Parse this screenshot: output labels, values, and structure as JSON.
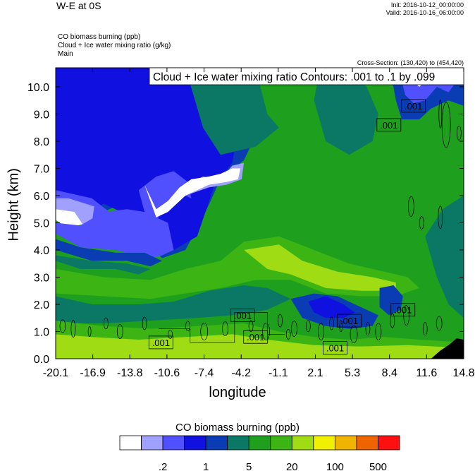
{
  "header": {
    "title": "W-E at 0S",
    "init": "Init: 2016-10-12_00:00:00",
    "valid": "Valid: 2016-10-16_06:00:00",
    "field1": "CO biomass burning   (ppb)",
    "field2": "Cloud + Ice water mixing ratio   (g/kg)",
    "field3": "Main",
    "cross_section": "Cross-Section: (130,420) to (454,420)"
  },
  "chart_data": {
    "type": "heatmap",
    "contour_label": "Cloud + Ice water mixing ratio Contours: .001 to .1 by .099",
    "xlabel": "longitude",
    "ylabel": "Height (km)",
    "xlim": [
      -20.1,
      14.8
    ],
    "ylim": [
      0,
      10.7
    ],
    "x_ticks": [
      "-20.1",
      "-16.9",
      "-13.8",
      "-10.6",
      "-7.4",
      "-4.2",
      "-1.1",
      "2.1",
      "5.3",
      "8.4",
      "11.6",
      "14.8"
    ],
    "y_ticks": [
      "0.0",
      "1.0",
      "2.0",
      "3.0",
      "4.0",
      "5.0",
      "6.0",
      "7.0",
      "8.0",
      "9.0",
      "10.0"
    ],
    "contour_value_labels": [
      {
        "text": ".001",
        "x": 10.5,
        "y": 9.3
      },
      {
        "text": ".001",
        "x": 8.4,
        "y": 8.6
      },
      {
        "text": ".001",
        "x": -4.1,
        "y": 1.6
      },
      {
        "text": ".001",
        "x": 9.6,
        "y": 1.8
      },
      {
        "text": ".001",
        "x": 5.0,
        "y": 1.4
      },
      {
        "text": ".001",
        "x": -3.0,
        "y": 0.8
      },
      {
        "text": ".001",
        "x": -11.1,
        "y": 0.6
      },
      {
        "text": ".001",
        "x": 3.8,
        "y": 0.4
      }
    ],
    "colorbar": {
      "title": "CO biomass burning  (ppb)",
      "colors": [
        "#ffffff",
        "#a0a0ff",
        "#5050ff",
        "#1010e0",
        "#0a3cb4",
        "#0a7864",
        "#1ea01e",
        "#3cb414",
        "#a0dc14",
        "#f0f000",
        "#f0b400",
        "#f06400",
        "#ff1010"
      ],
      "tick_labels": [
        ".2",
        "1",
        "5",
        "20",
        "100",
        "500"
      ]
    },
    "colormap": "CO biomass burning shaded field: low (~1-5 ppb, blue/white) aloft on the west side; higher (~20-100 ppb, green to yellow-green) in the lowest 2 km and mid levels east of -7.4; white gaps near 6-7 km around -9 to -3 and near 10 km around 12",
    "grid": false
  }
}
